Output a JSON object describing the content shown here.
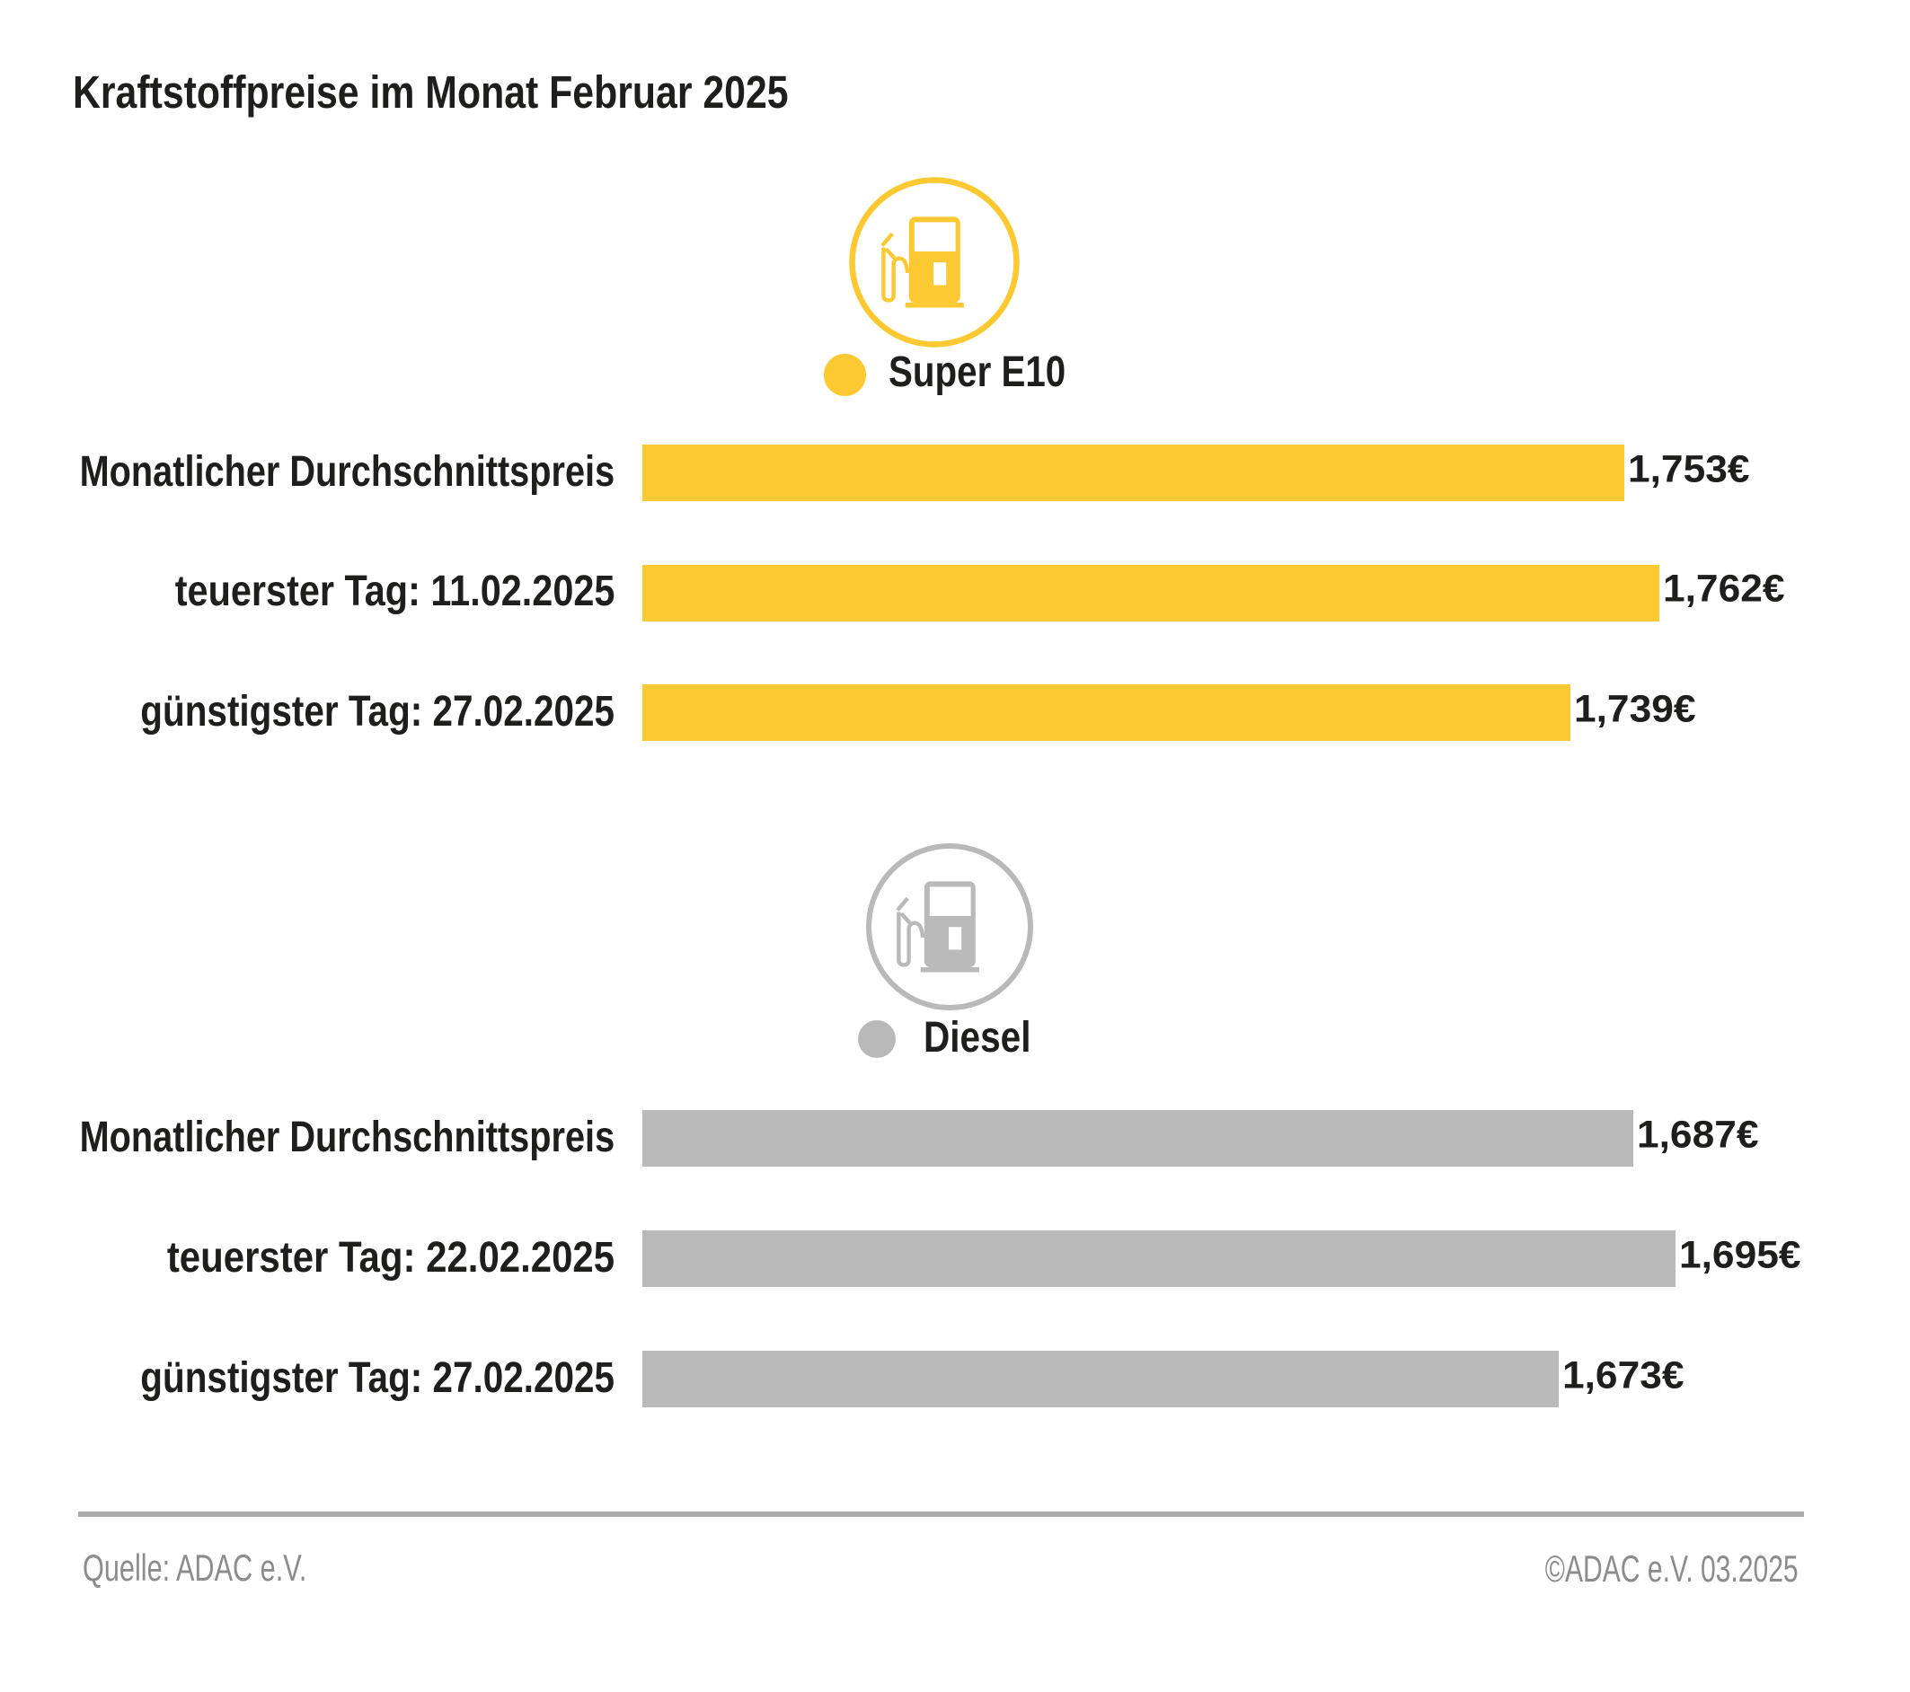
{
  "title": "Kraftstoffpreise im Monat Februar 2025",
  "colors": {
    "super_e10": "#fdc933",
    "diesel": "#b9b9b9",
    "text": "#1e1e1c",
    "footer_text": "#8c8c8c",
    "divider": "#ababab",
    "background": "#ffffff"
  },
  "chart_data": [
    {
      "type": "bar",
      "orientation": "horizontal",
      "legend": "Super E10",
      "icon": "fuel-pump-icon",
      "color": "#fdc933",
      "categories": [
        "Monatlicher Durchschnittspreis",
        "teuerster Tag: 11.02.2025",
        "günstigster Tag: 27.02.2025"
      ],
      "values": [
        1.753,
        1.762,
        1.739
      ],
      "value_labels": [
        "1,753€",
        "1,762€",
        "1,739€"
      ],
      "xlim": [
        1.5,
        1.762
      ]
    },
    {
      "type": "bar",
      "orientation": "horizontal",
      "legend": "Diesel",
      "icon": "fuel-pump-icon",
      "color": "#b9b9b9",
      "categories": [
        "Monatlicher Durchschnittspreis",
        "teuerster Tag: 22.02.2025",
        "günstigster Tag: 27.02.2025"
      ],
      "values": [
        1.687,
        1.695,
        1.673
      ],
      "value_labels": [
        "1,687€",
        "1,695€",
        "1,673€"
      ],
      "xlim": [
        1.5,
        1.695
      ]
    }
  ],
  "footer": {
    "source": "Quelle: ADAC e.V.",
    "copyright": "©ADAC e.V. 03.2025"
  }
}
